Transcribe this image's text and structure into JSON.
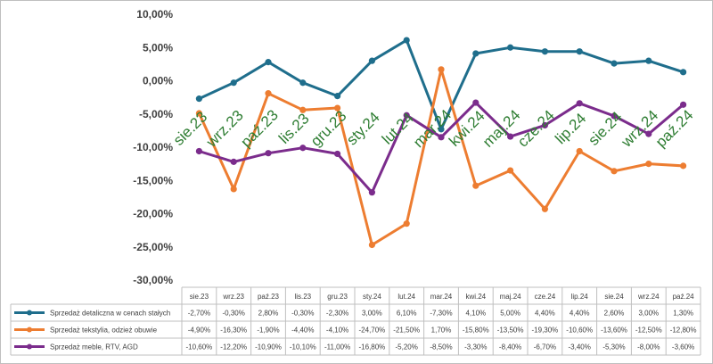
{
  "chart_data": {
    "type": "line",
    "categories": [
      "sie.23",
      "wrz.23",
      "paź.23",
      "lis.23",
      "gru.23",
      "sty.24",
      "lut.24",
      "mar.24",
      "kwi.24",
      "maj.24",
      "cze.24",
      "lip.24",
      "sie.24",
      "wrz.24",
      "paź.24"
    ],
    "yticks": [
      "10,00%",
      "5,00%",
      "0,00%",
      "-5,00%",
      "-10,00%",
      "-15,00%",
      "-20,00%",
      "-25,00%",
      "-30,00%"
    ],
    "ylim": [
      -30,
      10
    ],
    "grid": false,
    "legend": "data-table-bottom",
    "series": [
      {
        "name": "Sprzedaż detaliczna w cenach stałych",
        "color": "#1f6e8c",
        "values": [
          -2.7,
          -0.3,
          2.8,
          -0.3,
          -2.3,
          3.0,
          6.1,
          -7.3,
          4.1,
          5.0,
          4.4,
          4.4,
          2.6,
          3.0,
          1.3
        ],
        "labels": [
          "-2,70%",
          "-0,30%",
          "2,80%",
          "-0,30%",
          "-2,30%",
          "3,00%",
          "6,10%",
          "-7,30%",
          "4,10%",
          "5,00%",
          "4,40%",
          "4,40%",
          "2,60%",
          "3,00%",
          "1,30%"
        ]
      },
      {
        "name": "Sprzedaż tekstylia, odzież obuwie",
        "color": "#ed7d31",
        "values": [
          -4.9,
          -16.3,
          -1.9,
          -4.4,
          -4.1,
          -24.7,
          -21.5,
          1.7,
          -15.8,
          -13.5,
          -19.3,
          -10.6,
          -13.6,
          -12.5,
          -12.8
        ],
        "labels": [
          "-4,90%",
          "-16,30%",
          "-1,90%",
          "-4,40%",
          "-4,10%",
          "-24,70%",
          "-21,50%",
          "1,70%",
          "-15,80%",
          "-13,50%",
          "-19,30%",
          "-10,60%",
          "-13,60%",
          "-12,50%",
          "-12,80%"
        ]
      },
      {
        "name": "Sprzedaż meble, RTV, AGD",
        "color": "#7b2c8c",
        "values": [
          -10.6,
          -12.2,
          -10.9,
          -10.1,
          -11.0,
          -16.8,
          -5.2,
          -8.5,
          -3.3,
          -8.4,
          -6.7,
          -3.4,
          -5.3,
          -8.0,
          -3.6
        ],
        "labels": [
          "-10,60%",
          "-12,20%",
          "-10,90%",
          "-10,10%",
          "-11,00%",
          "-16,80%",
          "-5,20%",
          "-8,50%",
          "-3,30%",
          "-8,40%",
          "-6,70%",
          "-3,40%",
          "-5,30%",
          "-8,00%",
          "-3,60%"
        ]
      }
    ]
  }
}
